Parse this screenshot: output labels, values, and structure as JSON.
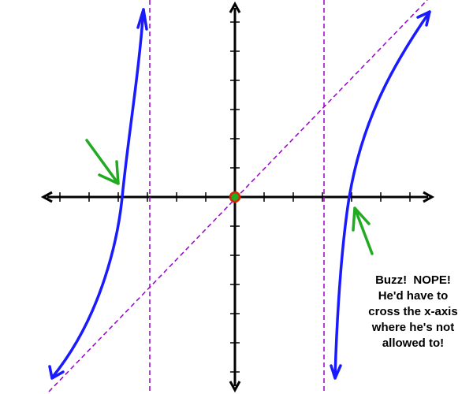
{
  "annotation": {
    "lines": [
      "Buzz!  NOPE!",
      "He'd have to",
      "cross the x-axis",
      "where he's not",
      "allowed to!"
    ]
  }
}
